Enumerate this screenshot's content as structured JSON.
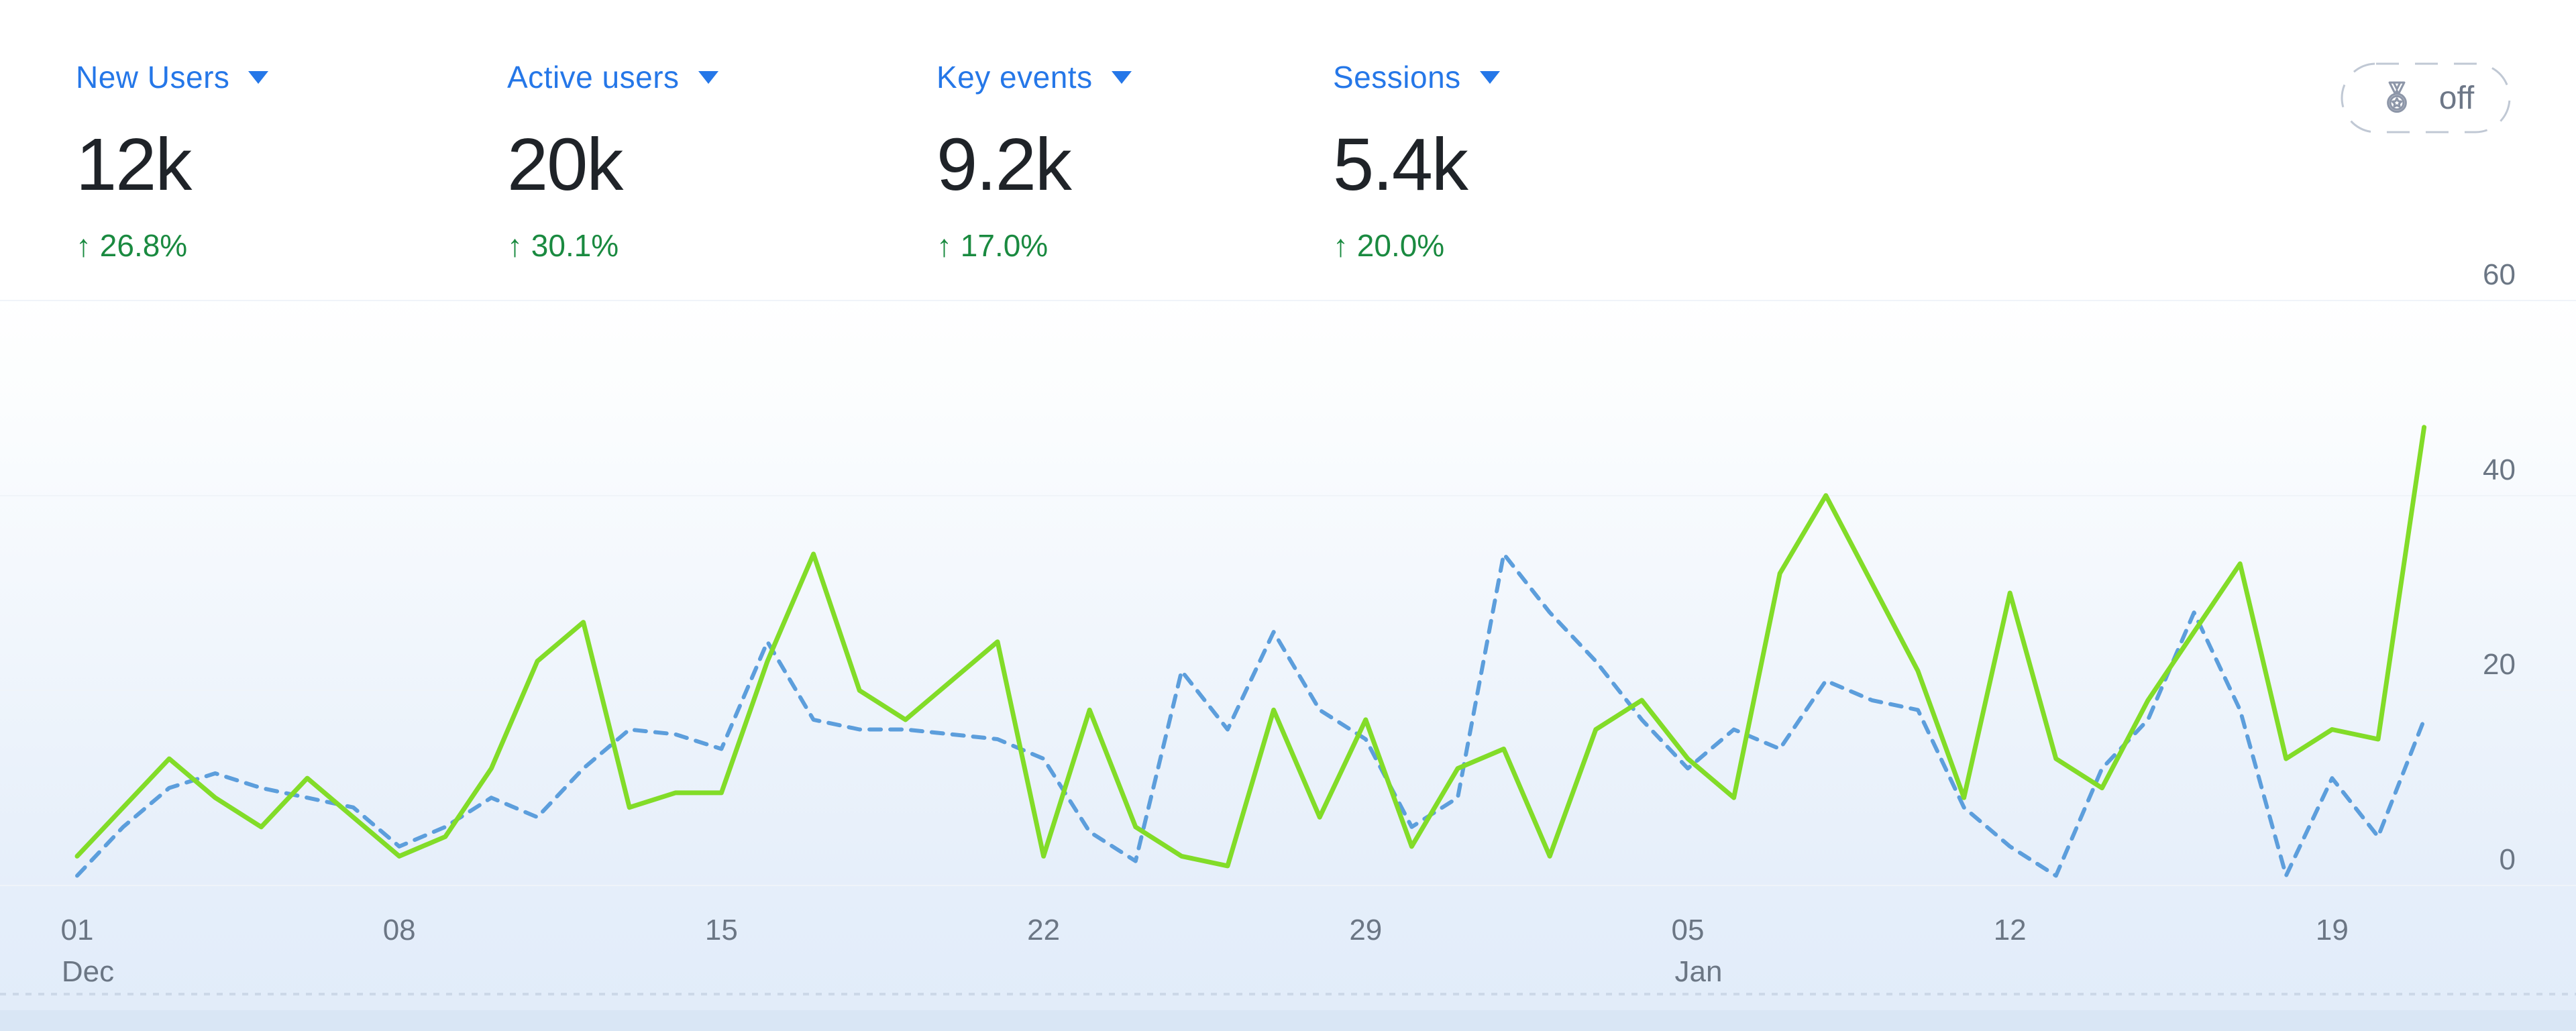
{
  "metrics": [
    {
      "label": "New Users",
      "value": "12k",
      "delta": "↑ 26.8%"
    },
    {
      "label": "Active users",
      "value": "20k",
      "delta": "↑ 30.1%"
    },
    {
      "label": "Key events",
      "value": "9.2k",
      "delta": "↑ 17.0%"
    },
    {
      "label": "Sessions",
      "value": "5.4k",
      "delta": "↑ 20.0%"
    }
  ],
  "toggle": {
    "label": "off",
    "icon": "medal-icon"
  },
  "colors": {
    "metric_label_blue": "#2577e8",
    "delta_green": "#1a8a40",
    "value_dark": "#1f2328",
    "axis_gray": "#6b7684",
    "line_green": "#82DC28",
    "line_blue": "#5C9EDC",
    "toggle_gray": "#6d7787"
  },
  "chart_data": {
    "type": "line",
    "title": "",
    "xlabel": "",
    "ylabel": "",
    "ylim": [
      0,
      60
    ],
    "y_ticks": [
      0,
      20,
      40,
      60
    ],
    "grid": "horizontal",
    "legend": "none",
    "x": [
      "Dec 01",
      "Dec 02",
      "Dec 03",
      "Dec 04",
      "Dec 05",
      "Dec 06",
      "Dec 07",
      "Dec 08",
      "Dec 09",
      "Dec 10",
      "Dec 11",
      "Dec 12",
      "Dec 13",
      "Dec 14",
      "Dec 15",
      "Dec 16",
      "Dec 17",
      "Dec 18",
      "Dec 19",
      "Dec 20",
      "Dec 21",
      "Dec 22",
      "Dec 23",
      "Dec 24",
      "Dec 25",
      "Dec 26",
      "Dec 27",
      "Dec 28",
      "Dec 29",
      "Dec 30",
      "Dec 31",
      "Jan 01",
      "Jan 02",
      "Jan 03",
      "Jan 04",
      "Jan 05",
      "Jan 06",
      "Jan 07",
      "Jan 08",
      "Jan 09",
      "Jan 10",
      "Jan 11",
      "Jan 12",
      "Jan 13",
      "Jan 14",
      "Jan 15",
      "Jan 16",
      "Jan 17",
      "Jan 18",
      "Jan 19",
      "Jan 20",
      "Jan 21"
    ],
    "x_ticks": [
      {
        "day": 0,
        "label": "01",
        "sub": "Dec"
      },
      {
        "day": 7,
        "label": "08",
        "sub": ""
      },
      {
        "day": 14,
        "label": "15",
        "sub": ""
      },
      {
        "day": 21,
        "label": "22",
        "sub": ""
      },
      {
        "day": 28,
        "label": "29",
        "sub": ""
      },
      {
        "day": 35,
        "label": "05",
        "sub": "Jan"
      },
      {
        "day": 42,
        "label": "12",
        "sub": ""
      },
      {
        "day": 49,
        "label": "19",
        "sub": ""
      }
    ],
    "series": [
      {
        "name": "comparison-dashed-blue",
        "color": "#5C9EDC",
        "style": "dashed",
        "values": [
          1,
          6,
          10,
          11.5,
          10,
          9,
          8,
          4,
          6,
          9,
          7,
          12,
          16,
          15.5,
          14,
          25,
          17,
          16,
          16,
          15.5,
          15,
          13,
          5.5,
          2.5,
          22,
          16,
          26,
          18,
          15,
          6,
          9,
          34,
          28,
          23,
          17,
          12,
          16,
          14,
          21,
          19,
          18,
          8,
          4,
          1,
          12,
          17,
          28,
          18,
          1,
          11,
          5,
          17
        ]
      },
      {
        "name": "primary-solid-green",
        "color": "#82DC28",
        "style": "solid",
        "values": [
          3,
          8,
          13,
          9,
          6,
          11,
          7,
          3,
          5,
          12,
          23,
          27,
          8,
          9.5,
          9.5,
          23,
          34,
          20,
          17,
          21,
          25,
          3,
          18,
          6,
          3,
          2,
          18,
          7,
          17,
          4,
          12,
          14,
          3,
          16,
          19,
          13,
          9,
          32,
          40,
          31,
          22,
          9,
          30,
          13,
          10,
          19,
          26,
          33,
          13,
          16,
          15,
          47
        ]
      }
    ]
  }
}
